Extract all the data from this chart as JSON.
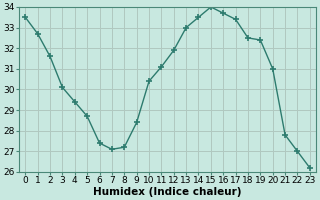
{
  "x": [
    0,
    1,
    2,
    3,
    4,
    5,
    6,
    7,
    8,
    9,
    10,
    11,
    12,
    13,
    14,
    15,
    16,
    17,
    18,
    19,
    20,
    21,
    22,
    23
  ],
  "y": [
    33.5,
    32.7,
    31.6,
    30.1,
    29.4,
    28.7,
    27.4,
    27.1,
    27.2,
    28.4,
    30.4,
    31.1,
    31.9,
    33.0,
    33.5,
    34.0,
    33.7,
    33.4,
    32.5,
    32.4,
    31.0,
    27.8,
    27.0,
    26.2
  ],
  "line_color": "#2d7b6e",
  "marker": "+",
  "marker_size": 5,
  "bg_color": "#c8e8e0",
  "grid_color": "#b0c8c0",
  "xlabel": "Humidex (Indice chaleur)",
  "ylim": [
    26,
    34
  ],
  "xlim_min": -0.5,
  "xlim_max": 23.5,
  "yticks": [
    26,
    27,
    28,
    29,
    30,
    31,
    32,
    33,
    34
  ],
  "xticks": [
    0,
    1,
    2,
    3,
    4,
    5,
    6,
    7,
    8,
    9,
    10,
    11,
    12,
    13,
    14,
    15,
    16,
    17,
    18,
    19,
    20,
    21,
    22,
    23
  ],
  "tick_label_fontsize": 6.5,
  "xlabel_fontsize": 7.5,
  "spine_color": "#4a8878",
  "linewidth": 1.0,
  "marker_linewidth": 1.2
}
